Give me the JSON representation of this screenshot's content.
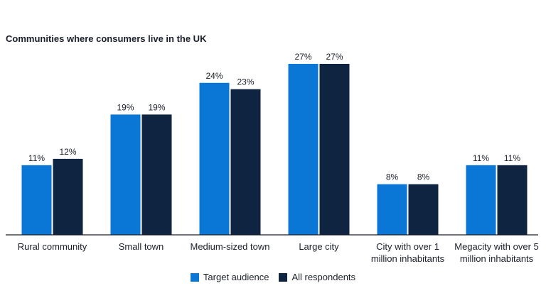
{
  "chart_data": {
    "type": "bar",
    "title": "Communities where consumers live in the UK",
    "xlabel": "",
    "ylabel": "",
    "categories": [
      [
        "Rural community"
      ],
      [
        "Small town"
      ],
      [
        "Medium-sized town"
      ],
      [
        "Large city"
      ],
      [
        "City with over 1",
        "million inhabitants"
      ],
      [
        "Megacity with over 5",
        "million inhabitants"
      ]
    ],
    "series": [
      {
        "name": "Target audience",
        "color": "#0a77d6",
        "values": [
          11,
          19,
          24,
          27,
          8,
          11
        ]
      },
      {
        "name": "All respondents",
        "color": "#0f2440",
        "values": [
          12,
          19,
          23,
          27,
          8,
          11
        ]
      }
    ],
    "value_suffix": "%",
    "ylim": [
      0,
      27
    ],
    "grid": false,
    "legend_position": "bottom-center"
  }
}
